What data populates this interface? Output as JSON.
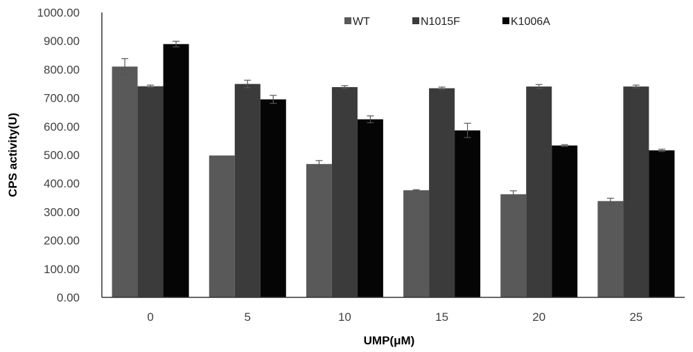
{
  "chart_data": {
    "type": "bar",
    "title": "",
    "xlabel": "UMP(μM)",
    "ylabel": "CPS activity(U)",
    "ylim": [
      0,
      1000
    ],
    "yticks": [
      "0.00",
      "100.00",
      "200.00",
      "300.00",
      "400.00",
      "500.00",
      "600.00",
      "700.00",
      "800.00",
      "900.00",
      "1000.00"
    ],
    "categories": [
      "0",
      "5",
      "10",
      "15",
      "20",
      "25"
    ],
    "grid": false,
    "legend_position": "top-right",
    "error_bars": true,
    "series": [
      {
        "name": "WT",
        "color": "#595959",
        "values": [
          810,
          498,
          468,
          376,
          362,
          338
        ],
        "errors": [
          28,
          0,
          12,
          2,
          12,
          10
        ]
      },
      {
        "name": "N1015F",
        "color": "#3b3b3b",
        "values": [
          741,
          749,
          738,
          734,
          740,
          740
        ],
        "errors": [
          4,
          13,
          5,
          4,
          7,
          5
        ]
      },
      {
        "name": "K1006A",
        "color": "#050505",
        "values": [
          889,
          695,
          625,
          586,
          533,
          516
        ],
        "errors": [
          10,
          14,
          12,
          25,
          3,
          4
        ]
      }
    ]
  }
}
